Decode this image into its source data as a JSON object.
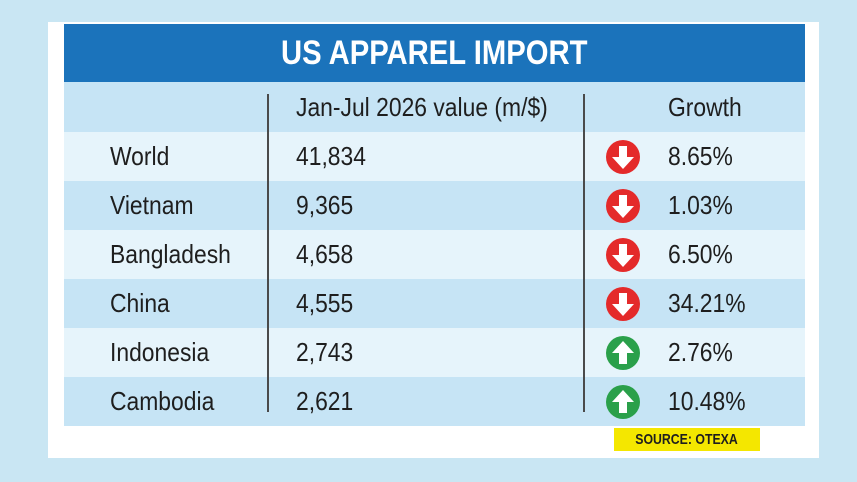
{
  "title": "US APPAREL IMPORT",
  "source": "SOURCE: OTEXA",
  "colors": {
    "title_bar": "#1b73bb",
    "row_light": "#e6f4fb",
    "row_dark": "#c6e4f5",
    "down_arrow": "#e42a2a",
    "up_arrow": "#2aa04a",
    "source_badge": "#f4e700"
  },
  "chart_data": {
    "type": "table",
    "title": "US APPAREL IMPORT",
    "columns": [
      "",
      "Jan-Jul 2026 value (m/$)",
      "Growth"
    ],
    "rows": [
      {
        "country": "World",
        "value": "41,834",
        "growth": "8.65%",
        "direction": "down"
      },
      {
        "country": "Vietnam",
        "value": "9,365",
        "growth": "1.03%",
        "direction": "down"
      },
      {
        "country": "Bangladesh",
        "value": "4,658",
        "growth": "6.50%",
        "direction": "down"
      },
      {
        "country": "China",
        "value": "4,555",
        "growth": "34.21%",
        "direction": "down"
      },
      {
        "country": "Indonesia",
        "value": "2,743",
        "growth": "2.76%",
        "direction": "up"
      },
      {
        "country": "Cambodia",
        "value": "2,621",
        "growth": "10.48%",
        "direction": "up"
      }
    ],
    "source": "SOURCE: OTEXA"
  }
}
